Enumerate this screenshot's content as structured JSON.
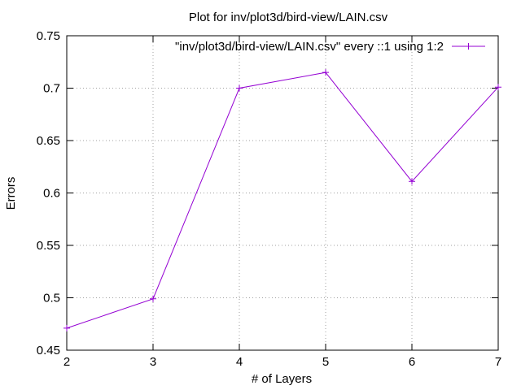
{
  "chart_data": {
    "type": "line",
    "title": "Plot for inv/plot3d/bird-view/LAIN.csv",
    "xlabel": "# of Layers",
    "ylabel": "Errors",
    "xlim": [
      2,
      7
    ],
    "ylim": [
      0.45,
      0.75
    ],
    "x_ticks": [
      "2",
      "3",
      "4",
      "5",
      "6",
      "7"
    ],
    "y_ticks": [
      "0.45",
      "0.5",
      "0.55",
      "0.6",
      "0.65",
      "0.7",
      "0.75"
    ],
    "grid": true,
    "legend_position": "top-right",
    "series": [
      {
        "name": "\"inv/plot3d/bird-view/LAIN.csv\" every ::1 using 1:2",
        "color": "#9400d3",
        "marker": "plus",
        "x": [
          2,
          3,
          4,
          5,
          6,
          7
        ],
        "values": [
          0.471,
          0.499,
          0.7,
          0.715,
          0.611,
          0.701
        ]
      }
    ]
  }
}
